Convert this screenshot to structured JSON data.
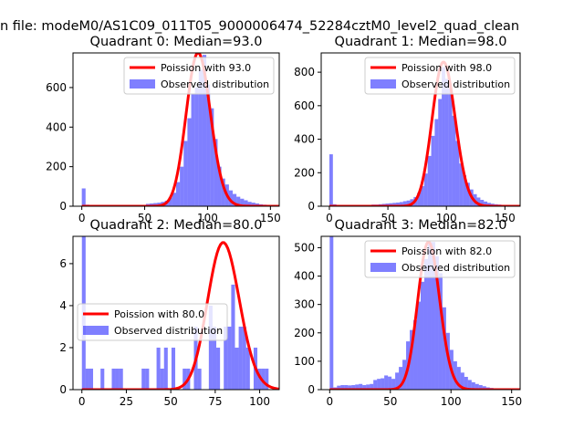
{
  "figure": {
    "suptitle": "n file: modeM0/AS1C09_011T05_9000006474_52284cztM0_level2_quad_clean"
  },
  "colors": {
    "bar": "#0000ff",
    "bar_opacity": 0.5,
    "fit": "#ff0000",
    "legend_border": "#cccccc"
  },
  "chart_data": [
    {
      "type": "bar",
      "title": "Quadrant 0: Median=93.0",
      "xlim": [
        -7,
        157
      ],
      "ylim": [
        0,
        775
      ],
      "xticks": [
        0,
        50,
        100,
        150
      ],
      "yticks": [
        0,
        200,
        400,
        600
      ],
      "bin_width": 3,
      "bins": [
        [
          0,
          90
        ],
        [
          3,
          8
        ],
        [
          6,
          4
        ],
        [
          9,
          4
        ],
        [
          12,
          4
        ],
        [
          15,
          4
        ],
        [
          18,
          4
        ],
        [
          21,
          4
        ],
        [
          24,
          4
        ],
        [
          27,
          4
        ],
        [
          30,
          4
        ],
        [
          33,
          4
        ],
        [
          36,
          4
        ],
        [
          39,
          4
        ],
        [
          42,
          4
        ],
        [
          45,
          4
        ],
        [
          48,
          6
        ],
        [
          51,
          12
        ],
        [
          54,
          14
        ],
        [
          57,
          16
        ],
        [
          60,
          18
        ],
        [
          63,
          22
        ],
        [
          66,
          28
        ],
        [
          69,
          45
        ],
        [
          72,
          68
        ],
        [
          75,
          122
        ],
        [
          78,
          200
        ],
        [
          81,
          330
        ],
        [
          84,
          445
        ],
        [
          87,
          570
        ],
        [
          90,
          600
        ],
        [
          93,
          690
        ],
        [
          96,
          765
        ],
        [
          99,
          615
        ],
        [
          102,
          495
        ],
        [
          105,
          340
        ],
        [
          108,
          200
        ],
        [
          111,
          140
        ],
        [
          114,
          110
        ],
        [
          117,
          80
        ],
        [
          120,
          62
        ],
        [
          123,
          48
        ],
        [
          126,
          38
        ],
        [
          129,
          30
        ],
        [
          132,
          22
        ],
        [
          135,
          18
        ],
        [
          138,
          14
        ],
        [
          141,
          10
        ],
        [
          144,
          8
        ],
        [
          147,
          6
        ],
        [
          150,
          4
        ]
      ],
      "fit": {
        "label": "Poission with 93.0",
        "lambda": 93.0,
        "amplitude": 775
      },
      "legend": {
        "position": "top-right",
        "entries": [
          "Poission with 93.0",
          "Observed distribution"
        ]
      }
    },
    {
      "type": "bar",
      "title": "Quadrant 1: Median=98.0",
      "xlim": [
        -7,
        163
      ],
      "ylim": [
        0,
        915
      ],
      "xticks": [
        0,
        50,
        100,
        150
      ],
      "yticks": [
        0,
        200,
        400,
        600,
        800
      ],
      "bin_width": 3,
      "bins": [
        [
          0,
          310
        ],
        [
          3,
          12
        ],
        [
          6,
          6
        ],
        [
          9,
          5
        ],
        [
          12,
          5
        ],
        [
          15,
          5
        ],
        [
          18,
          5
        ],
        [
          21,
          5
        ],
        [
          24,
          5
        ],
        [
          27,
          6
        ],
        [
          30,
          8
        ],
        [
          33,
          8
        ],
        [
          36,
          10
        ],
        [
          39,
          10
        ],
        [
          42,
          12
        ],
        [
          45,
          14
        ],
        [
          48,
          16
        ],
        [
          51,
          18
        ],
        [
          54,
          20
        ],
        [
          57,
          22
        ],
        [
          60,
          25
        ],
        [
          63,
          30
        ],
        [
          66,
          34
        ],
        [
          69,
          42
        ],
        [
          72,
          55
        ],
        [
          75,
          80
        ],
        [
          78,
          120
        ],
        [
          81,
          195
        ],
        [
          84,
          300
        ],
        [
          87,
          420
        ],
        [
          90,
          520
        ],
        [
          93,
          640
        ],
        [
          96,
          830
        ],
        [
          99,
          760
        ],
        [
          102,
          705
        ],
        [
          105,
          540
        ],
        [
          108,
          390
        ],
        [
          111,
          255
        ],
        [
          114,
          185
        ],
        [
          117,
          140
        ],
        [
          120,
          100
        ],
        [
          123,
          72
        ],
        [
          126,
          52
        ],
        [
          129,
          38
        ],
        [
          132,
          28
        ],
        [
          135,
          20
        ],
        [
          138,
          15
        ],
        [
          141,
          12
        ],
        [
          144,
          10
        ],
        [
          147,
          8
        ],
        [
          150,
          6
        ],
        [
          153,
          4
        ]
      ],
      "fit": {
        "label": "Poission with 98.0",
        "lambda": 98.0,
        "amplitude": 860
      },
      "legend": {
        "position": "top-right",
        "entries": [
          "Poission with 98.0",
          "Observed distribution"
        ]
      }
    },
    {
      "type": "bar",
      "title": "Quadrant 2: Median=80.0",
      "xlim": [
        -5,
        111
      ],
      "ylim": [
        0,
        7.3
      ],
      "xticks": [
        0,
        25,
        50,
        75,
        100
      ],
      "yticks": [
        0,
        2,
        4,
        6
      ],
      "bin_width": 2.1,
      "bins": [
        [
          0,
          7.3
        ],
        [
          2.1,
          1
        ],
        [
          4.2,
          1
        ],
        [
          10.5,
          1
        ],
        [
          16.8,
          1
        ],
        [
          18.9,
          1
        ],
        [
          21,
          1
        ],
        [
          33.6,
          1
        ],
        [
          35.7,
          1
        ],
        [
          42,
          2
        ],
        [
          44.1,
          1
        ],
        [
          46.2,
          2
        ],
        [
          50.4,
          2
        ],
        [
          56.7,
          1
        ],
        [
          58.8,
          1
        ],
        [
          63,
          3
        ],
        [
          65.1,
          1
        ],
        [
          71.4,
          4
        ],
        [
          73.5,
          3
        ],
        [
          75.6,
          2
        ],
        [
          79.8,
          3
        ],
        [
          81.9,
          3
        ],
        [
          84,
          5
        ],
        [
          86.1,
          2
        ],
        [
          88.2,
          3
        ],
        [
          90.3,
          3
        ],
        [
          92.4,
          2
        ],
        [
          96.6,
          2
        ],
        [
          98.7,
          1
        ],
        [
          100.8,
          1
        ],
        [
          102.9,
          1
        ]
      ],
      "fit": {
        "label": "Poission with 80.0",
        "lambda": 80.0,
        "amplitude": 7.0
      },
      "legend": {
        "position": "center-left",
        "entries": [
          "Poission with 80.0",
          "Observed distribution"
        ]
      }
    },
    {
      "type": "bar",
      "title": "Quadrant 3: Median=82.0",
      "xlim": [
        -7,
        157
      ],
      "ylim": [
        0,
        540
      ],
      "xticks": [
        0,
        50,
        100,
        150
      ],
      "yticks": [
        0,
        100,
        200,
        300,
        400,
        500
      ],
      "bin_width": 3,
      "bins": [
        [
          0,
          540
        ],
        [
          3,
          8
        ],
        [
          6,
          14
        ],
        [
          9,
          16
        ],
        [
          12,
          16
        ],
        [
          15,
          15
        ],
        [
          18,
          16
        ],
        [
          21,
          18
        ],
        [
          24,
          20
        ],
        [
          27,
          16
        ],
        [
          30,
          18
        ],
        [
          33,
          20
        ],
        [
          36,
          34
        ],
        [
          39,
          38
        ],
        [
          42,
          40
        ],
        [
          45,
          50
        ],
        [
          48,
          46
        ],
        [
          51,
          38
        ],
        [
          54,
          60
        ],
        [
          57,
          80
        ],
        [
          60,
          105
        ],
        [
          63,
          170
        ],
        [
          66,
          210
        ],
        [
          69,
          245
        ],
        [
          72,
          310
        ],
        [
          75,
          380
        ],
        [
          78,
          460
        ],
        [
          81,
          520
        ],
        [
          84,
          520
        ],
        [
          87,
          470
        ],
        [
          90,
          410
        ],
        [
          93,
          290
        ],
        [
          96,
          200
        ],
        [
          99,
          140
        ],
        [
          102,
          100
        ],
        [
          105,
          80
        ],
        [
          108,
          60
        ],
        [
          111,
          45
        ],
        [
          114,
          34
        ],
        [
          117,
          26
        ],
        [
          120,
          20
        ],
        [
          123,
          16
        ],
        [
          126,
          12
        ],
        [
          129,
          8
        ],
        [
          132,
          6
        ],
        [
          135,
          4
        ]
      ],
      "fit": {
        "label": "Poission with 82.0",
        "lambda": 82.0,
        "amplitude": 520
      },
      "legend": {
        "position": "top-right",
        "entries": [
          "Poission with 82.0",
          "Observed distribution"
        ]
      }
    }
  ]
}
